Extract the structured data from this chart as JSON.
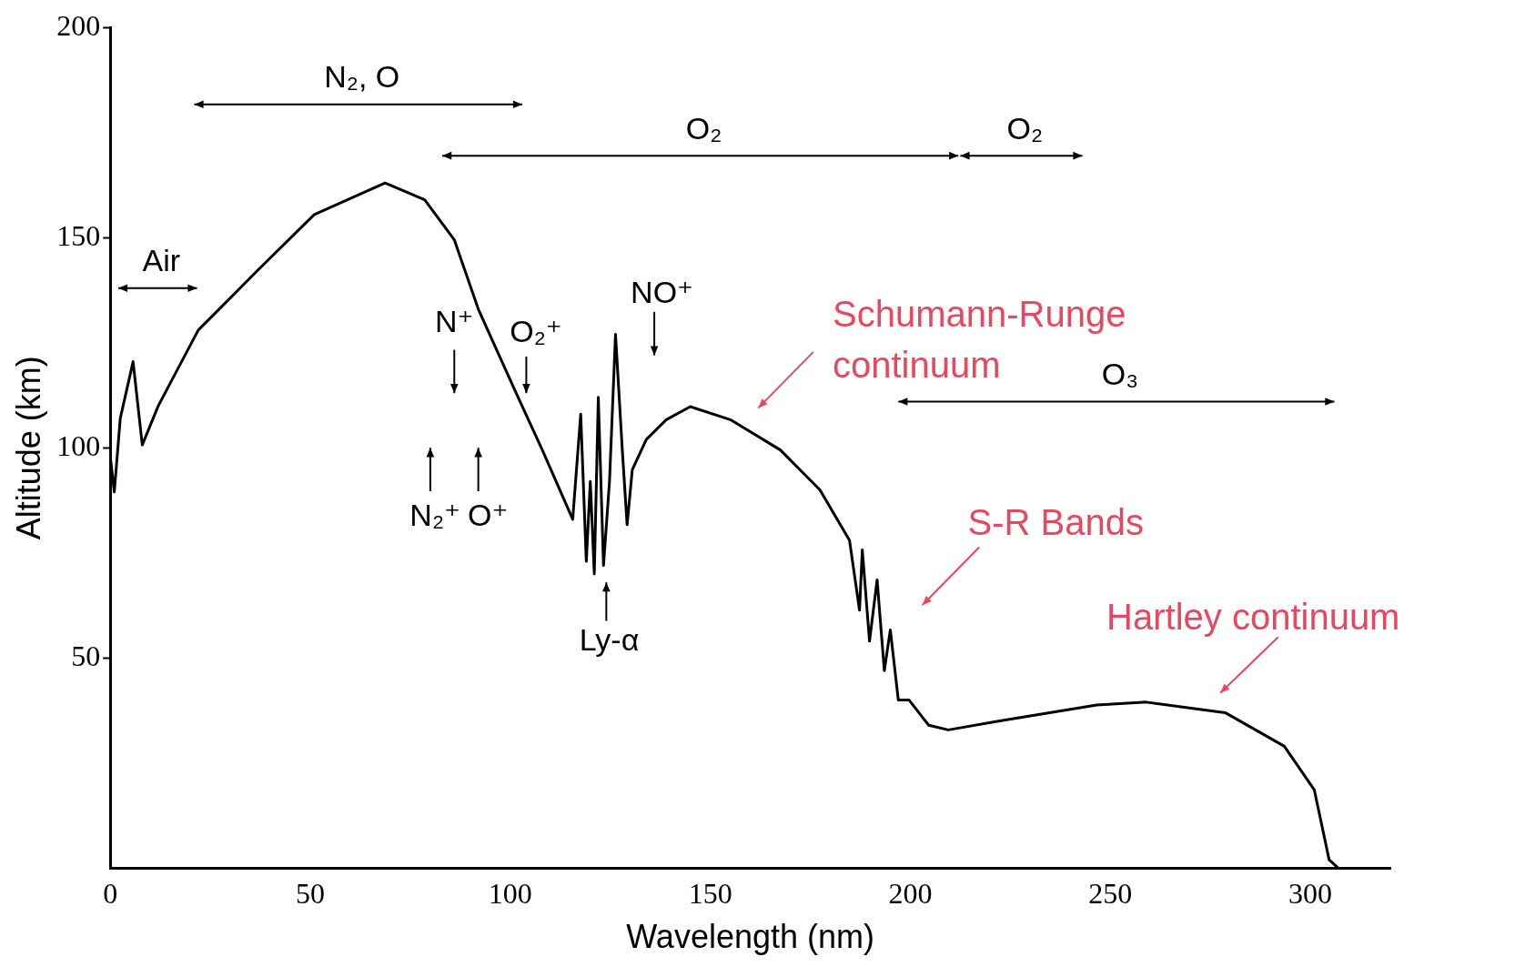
{
  "chart_data": {
    "type": "line",
    "xlabel": "Wavelength (nm)",
    "ylabel": "Altitude (km)",
    "xlim": [
      0,
      320
    ],
    "ylim": [
      0,
      200
    ],
    "xticks": [
      0,
      50,
      100,
      150,
      200,
      250,
      300
    ],
    "yticks": [
      50,
      100,
      150,
      200
    ],
    "grid": false,
    "legend": false,
    "series": [
      {
        "color": "#000000",
        "x": [
          0,
          1,
          2.5,
          5.7,
          8,
          12,
          22,
          36.6,
          51,
          68.7,
          78.6,
          86,
          92,
          101,
          108,
          115.6,
          117.6,
          119,
          120,
          121,
          122,
          123.3,
          124.8,
          126.3,
          128,
          129.2,
          130.5,
          134,
          139,
          145,
          155,
          167.5,
          177.4,
          184.8,
          187.3,
          188,
          189.8,
          191.7,
          193.5,
          195,
          197,
          199.7,
          204.6,
          209.5,
          222,
          246.6,
          259,
          278.7,
          293.5,
          301,
          304.7,
          307
        ],
        "values": [
          98,
          89.5,
          107,
          120.5,
          100.7,
          110,
          128,
          142,
          155.5,
          163,
          159,
          149.5,
          133,
          114,
          99.5,
          83,
          108,
          73,
          92,
          70,
          112,
          72,
          92,
          127,
          99.5,
          81.7,
          94.8,
          102,
          106.7,
          109.8,
          106.7,
          99.5,
          90,
          78,
          61.4,
          75.7,
          54,
          68.6,
          47,
          56.7,
          40,
          40,
          34,
          32.9,
          35,
          38.8,
          39.5,
          37,
          29,
          18.6,
          2,
          0
        ]
      }
    ],
    "annotations": [
      "Air",
      "N₂, O",
      "O₂",
      "O₂",
      "O₃",
      "N⁺",
      "O₂⁺",
      "NO⁺",
      "N₂⁺",
      "O⁺",
      "Ly-α",
      "Schumann-Runge continuum",
      "S-R Bands",
      "Hartley continuum"
    ]
  }
}
